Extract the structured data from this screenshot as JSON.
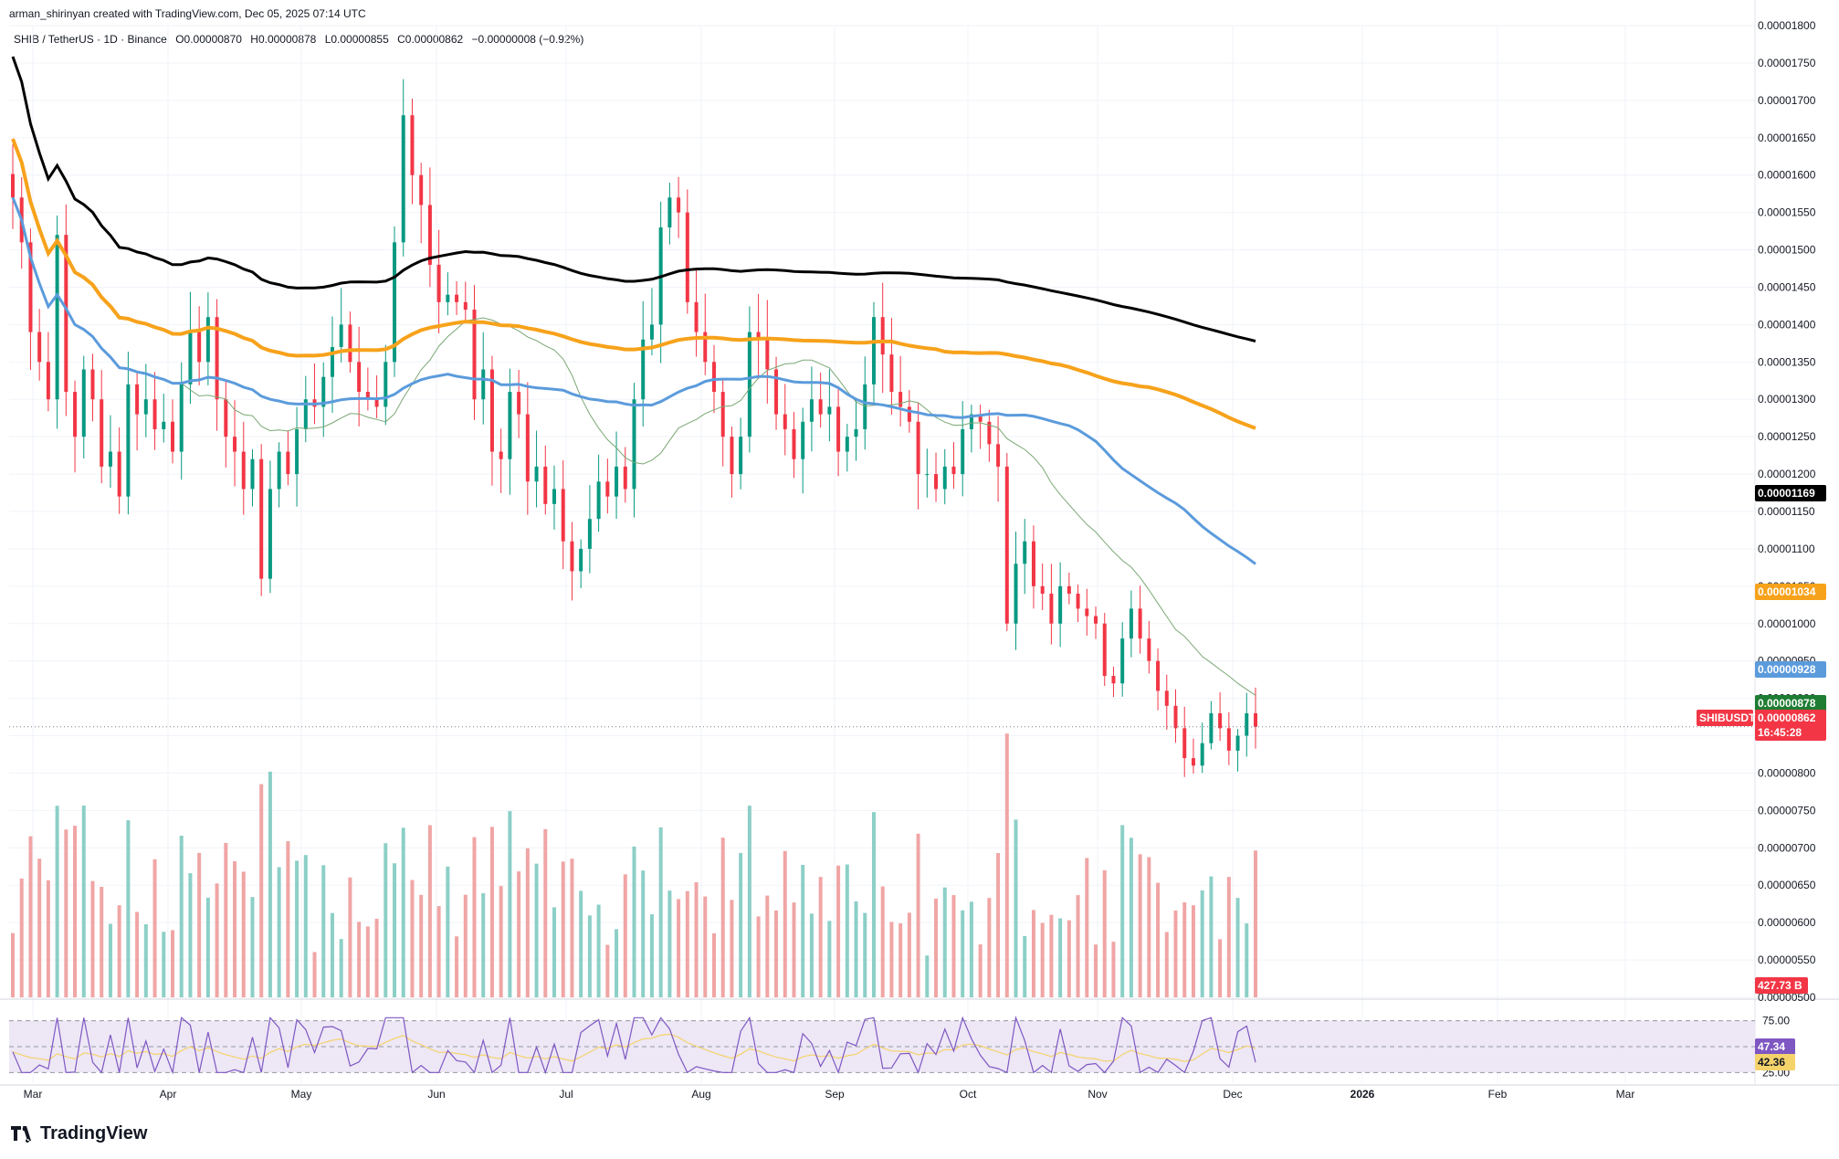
{
  "header": {
    "credit": "arman_shirinyan created with TradingView.com, Dec 05, 2025 07:14 UTC",
    "symbol_line": "SHIB / TetherUS · 1D · Binance",
    "open": "O0.00000870",
    "high": "H0.00000878",
    "low": "L0.00000855",
    "close": "C0.00000862",
    "change": "−0.00000008 (−0.92%)"
  },
  "brand": "TradingView",
  "colors": {
    "up": "#089981",
    "down": "#f23645",
    "vol_up": "#8ccfc7",
    "vol_down": "#f0a5a5",
    "ma200": "#000000",
    "ma100": "#f7a21b",
    "ma50": "#5b9bdc",
    "ma20": "#7aa874",
    "rsi": "#7e57c2",
    "rsi_ma": "#f5d36b",
    "rsi_band": "#ede7f6"
  },
  "chart_data": {
    "type": "candlestick",
    "price_axis": {
      "min": 5e-06,
      "max": 1.8e-05,
      "ticks": [
        "0.00001800",
        "0.00001750",
        "0.00001700",
        "0.00001650",
        "0.00001600",
        "0.00001550",
        "0.00001500",
        "0.00001450",
        "0.00001400",
        "0.00001350",
        "0.00001300",
        "0.00001250",
        "0.00001200",
        "0.00001150",
        "0.00001100",
        "0.00001050",
        "0.00001000",
        "0.00000950",
        "0.00000900",
        "0.00000850",
        "0.00000800",
        "0.00000750",
        "0.00000700",
        "0.00000650",
        "0.00000600",
        "0.00000550",
        "0.00000500"
      ]
    },
    "time_axis": [
      "Mar",
      "Apr",
      "May",
      "Jun",
      "Jul",
      "Aug",
      "Sep",
      "Oct",
      "Nov",
      "Dec",
      "2026",
      "Feb",
      "Mar"
    ],
    "price_labels": [
      {
        "name": "ma200",
        "value": "0.00001169",
        "color": "#000000"
      },
      {
        "name": "ma100",
        "value": "0.00001034",
        "color": "#f7a21b"
      },
      {
        "name": "ma50",
        "value": "0.00000928",
        "color": "#5b9bdc"
      },
      {
        "name": "ma20",
        "value": "0.00000878",
        "color": "#1e7d32"
      },
      {
        "name": "last",
        "value": "0.00000862",
        "color": "#f23645"
      }
    ],
    "symbol_tag": "SHIBUSDT",
    "countdown": "16:45:28",
    "volume_label": "427.73 B",
    "rsi": {
      "upper": "75.00",
      "lower": "25.00",
      "value": "47.34",
      "ma_value": "42.36"
    },
    "close_series_x1e8": [
      1570,
      1510,
      1390,
      1350,
      1300,
      1520,
      1310,
      1250,
      1340,
      1300,
      1210,
      1230,
      1170,
      1320,
      1280,
      1300,
      1260,
      1270,
      1230,
      1320,
      1390,
      1350,
      1410,
      1300,
      1250,
      1230,
      1180,
      1220,
      1060,
      1180,
      1230,
      1200,
      1260,
      1300,
      1290,
      1330,
      1370,
      1400,
      1350,
      1310,
      1300,
      1290,
      1350,
      1510,
      1680,
      1600,
      1560,
      1480,
      1430,
      1440,
      1430,
      1420,
      1300,
      1340,
      1230,
      1220,
      1310,
      1280,
      1190,
      1210,
      1160,
      1180,
      1110,
      1070,
      1100,
      1140,
      1190,
      1170,
      1210,
      1180,
      1300,
      1380,
      1400,
      1530,
      1570,
      1550,
      1430,
      1390,
      1350,
      1310,
      1250,
      1200,
      1250,
      1390,
      1380,
      1340,
      1280,
      1260,
      1220,
      1270,
      1300,
      1280,
      1290,
      1230,
      1250,
      1260,
      1320,
      1410,
      1360,
      1310,
      1290,
      1270,
      1200,
      1200,
      1180,
      1210,
      1200,
      1260,
      1280,
      1270,
      1240,
      1210,
      1000,
      1080,
      1110,
      1050,
      1040,
      1000,
      1050,
      1040,
      1020,
      1010,
      1000,
      930,
      920,
      980,
      1020,
      980,
      950,
      910,
      890,
      860,
      820,
      810,
      840,
      880,
      860,
      830,
      850,
      880,
      862
    ]
  }
}
